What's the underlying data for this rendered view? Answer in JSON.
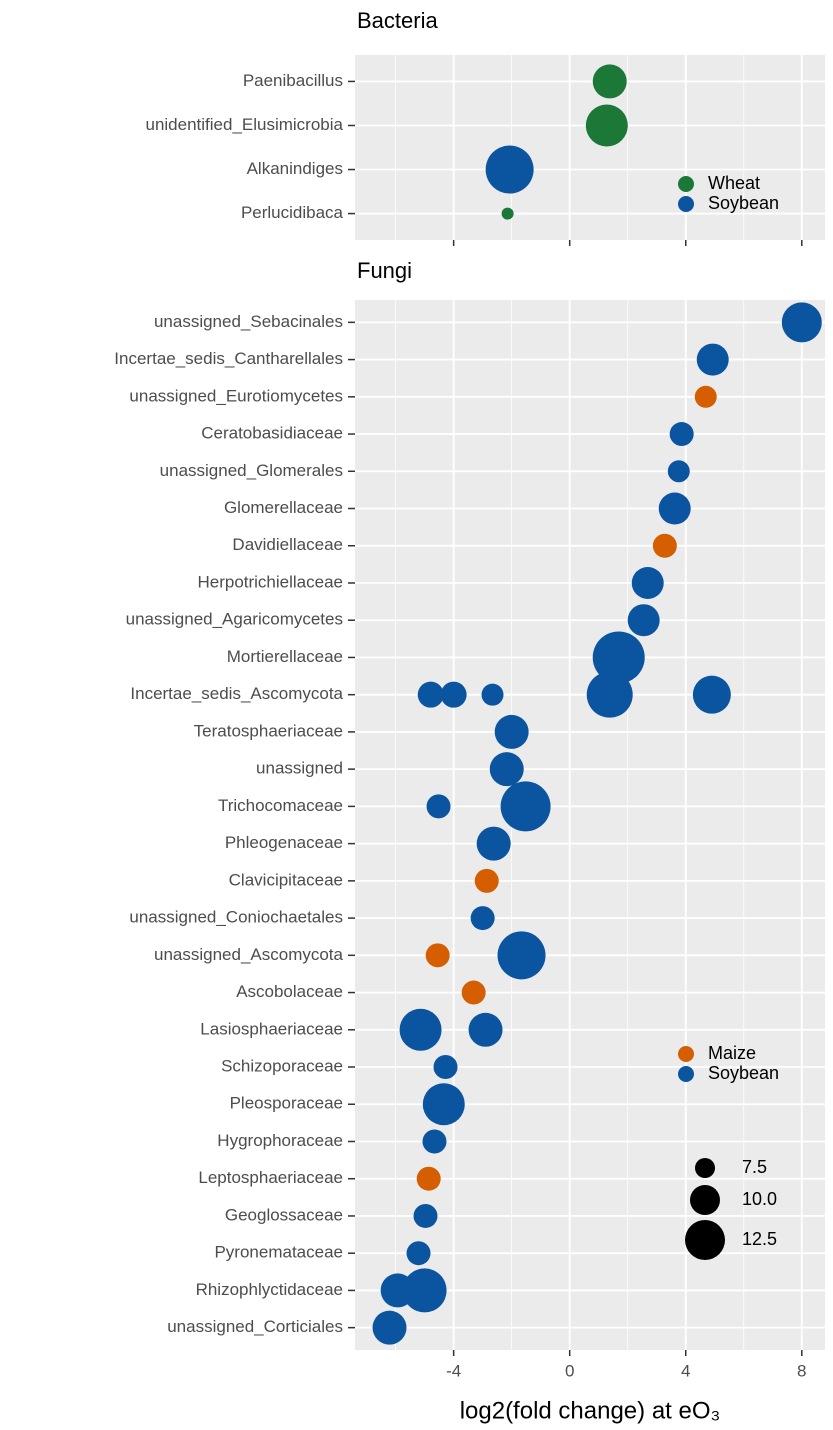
{
  "chart_data": [
    {
      "type": "scatter",
      "title": "Bacteria",
      "categories": [
        "Paenibacillus",
        "unidentified_Elusimicrobia",
        "Alkanindiges",
        "Perlucidibaca"
      ],
      "series": [
        {
          "name": "Wheat",
          "color": "#1b7837",
          "x": [
            1.38,
            1.28,
            -2.14
          ],
          "y": [
            "Paenibacillus",
            "unidentified_Elusimicrobia",
            "Perlucidibaca"
          ],
          "size": [
            11,
            13,
            5.5
          ]
        },
        {
          "name": "Soybean",
          "color": "#0b55a0",
          "x": [
            -2.07
          ],
          "y": [
            "Alkanindiges"
          ],
          "size": [
            14.5
          ]
        }
      ],
      "xlim": [
        -7.4,
        8.8
      ],
      "xticks": [
        -4,
        0,
        4,
        8
      ],
      "show_tick_labels": false,
      "grid": true
    },
    {
      "type": "scatter",
      "title": "Fungi",
      "categories": [
        "unassigned_Sebacinales",
        "Incertae_sedis_Cantharellales",
        "unassigned_Eurotiomycetes",
        "Ceratobasidiaceae",
        "unassigned_Glomerales",
        "Glomerellaceae",
        "Davidiellaceae",
        "Herpotrichiellaceae",
        "unassigned_Agaricomycetes",
        "Mortierellaceae",
        "Incertae_sedis_Ascomycota",
        "Teratosphaeriaceae",
        "unassigned",
        "Trichocomaceae",
        "Phleogenaceae",
        "Clavicipitaceae",
        "unassigned_Coniochaetales",
        "unassigned_Ascomycota",
        "Ascobolaceae",
        "Lasiosphaeriaceae",
        "Schizoporaceae",
        "Pleosporaceae",
        "Hygrophoraceae",
        "Leptosphaeriaceae",
        "Geoglossaceae",
        "Pyronemataceae",
        "Rhizophlyctidaceae",
        "unassigned_Corticiales"
      ],
      "series": [
        {
          "name": "Maize",
          "color": "#d55e00",
          "x": [
            4.69,
            3.28,
            -2.86,
            -4.55,
            -3.31,
            -4.86
          ],
          "y": [
            "unassigned_Eurotiomycetes",
            "Davidiellaceae",
            "Clavicipitaceae",
            "unassigned_Ascomycota",
            "Ascobolaceae",
            "Leptosphaeriaceae"
          ],
          "size": [
            8,
            8.5,
            8.5,
            8.5,
            8.5,
            8.5
          ]
        },
        {
          "name": "Soybean",
          "color": "#0b55a0",
          "x": [
            8.0,
            4.93,
            3.86,
            3.76,
            3.62,
            2.69,
            2.55,
            1.69,
            -4.79,
            -4.0,
            -2.66,
            1.38,
            4.9,
            -2.0,
            -2.17,
            -4.52,
            -1.52,
            -2.62,
            -3.0,
            -1.66,
            -5.14,
            -2.9,
            -4.28,
            -4.34,
            -4.66,
            -4.97,
            -5.21,
            -5.93,
            -5.0,
            -6.21
          ],
          "y": [
            "unassigned_Sebacinales",
            "Incertae_sedis_Cantharellales",
            "Ceratobasidiaceae",
            "unassigned_Glomerales",
            "Glomerellaceae",
            "Herpotrichiellaceae",
            "unassigned_Agaricomycetes",
            "Mortierellaceae",
            "Incertae_sedis_Ascomycota",
            "Incertae_sedis_Ascomycota",
            "Incertae_sedis_Ascomycota",
            "Incertae_sedis_Ascomycota",
            "Incertae_sedis_Ascomycota",
            "Teratosphaeriaceae",
            "unassigned",
            "Trichocomaceae",
            "Trichocomaceae",
            "Phleogenaceae",
            "unassigned_Coniochaetales",
            "unassigned_Ascomycota",
            "Lasiosphaeriaceae",
            "Lasiosphaeriaceae",
            "Schizoporaceae",
            "Pleosporaceae",
            "Hygrophoraceae",
            "Geoglossaceae",
            "Pyronemataceae",
            "Rhizophlyctidaceae",
            "Rhizophlyctidaceae",
            "unassigned_Corticiales"
          ],
          "size": [
            12.5,
            10.5,
            8.5,
            8,
            10.5,
            10.5,
            10.5,
            15.5,
            9,
            9,
            8,
            14,
            12,
            11,
            11,
            8.5,
            15,
            11,
            8.5,
            14.5,
            13,
            11,
            8.5,
            13,
            8.5,
            8.5,
            8.5,
            11,
            13.5,
            11
          ]
        }
      ],
      "xlim": [
        -7.4,
        8.8
      ],
      "xticks": [
        -4,
        0,
        4,
        8
      ],
      "show_tick_labels": true,
      "grid": true,
      "xlabel": "log2(fold change) at eO₃",
      "size_legend": [
        7.5,
        {
          "value": 10,
          "label": "10.0"
        },
        12.5
      ]
    }
  ]
}
